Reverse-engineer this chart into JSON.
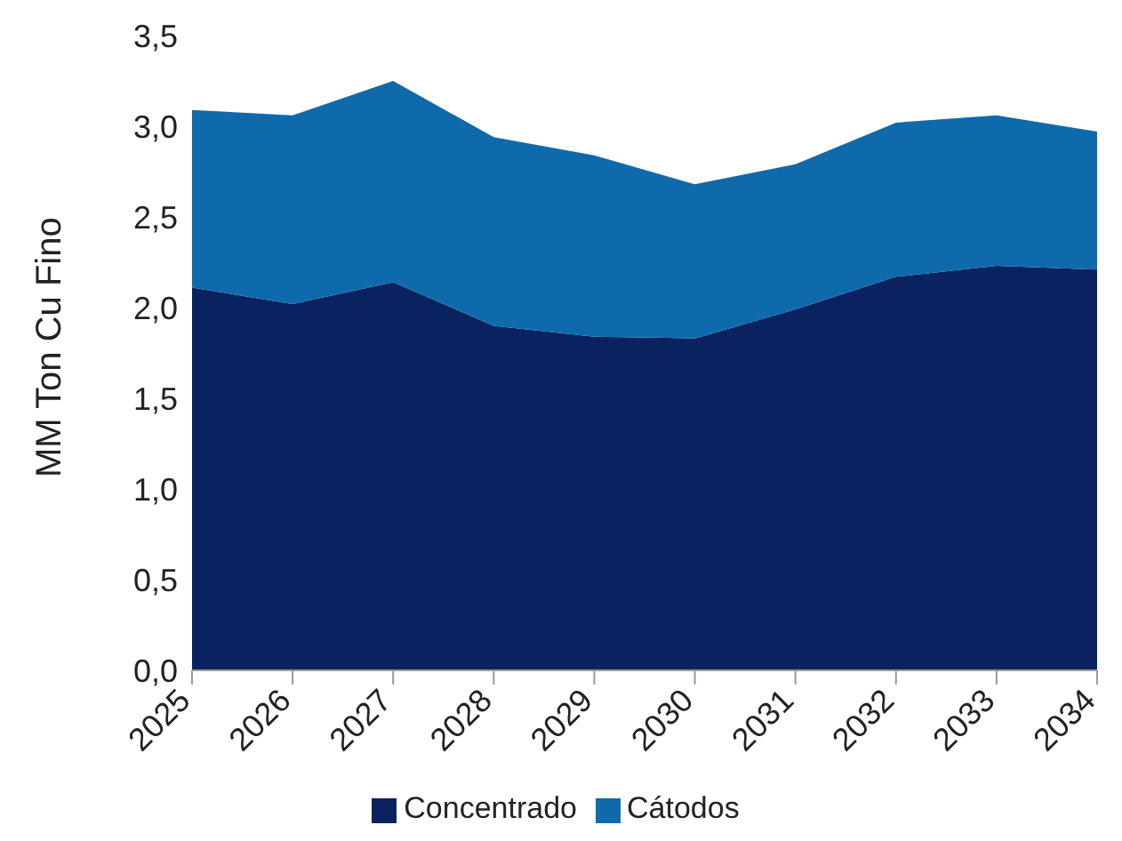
{
  "chart_data": {
    "type": "area",
    "stacked": true,
    "ylabel": "MM Ton Cu Fino",
    "categories": [
      "2025",
      "2026",
      "2027",
      "2028",
      "2029",
      "2030",
      "2031",
      "2032",
      "2033",
      "2034"
    ],
    "series": [
      {
        "name": "Concentrado",
        "color": "#0b2260",
        "values": [
          2.11,
          2.02,
          2.14,
          1.9,
          1.84,
          1.83,
          1.99,
          2.17,
          2.23,
          2.21
        ]
      },
      {
        "name": "Cátodos",
        "color": "#0f6aab",
        "values": [
          0.98,
          1.04,
          1.11,
          1.04,
          1.0,
          0.85,
          0.8,
          0.85,
          0.83,
          0.76
        ]
      }
    ],
    "ylim": [
      0,
      3.5
    ],
    "yticks": [
      {
        "value": 0,
        "label": "0,0"
      },
      {
        "value": 0.5,
        "label": "0,5"
      },
      {
        "value": 1,
        "label": "1,0"
      },
      {
        "value": 1.5,
        "label": "1,5"
      },
      {
        "value": 2,
        "label": "2,0"
      },
      {
        "value": 2.5,
        "label": "2,5"
      },
      {
        "value": 3,
        "label": "3,0"
      },
      {
        "value": 3.5,
        "label": "3,5"
      }
    ],
    "grid": false,
    "legend": "bottom"
  }
}
